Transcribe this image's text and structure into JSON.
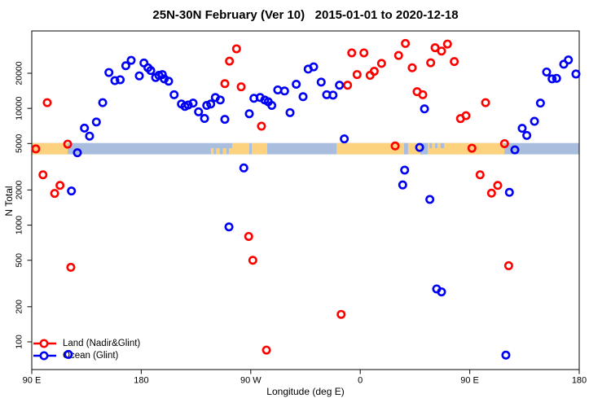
{
  "title": "25N-30N February (Ver 10)   2015-01-01 to 2020-12-18",
  "legend": {
    "land_label": "Land (Nadir&Glint)",
    "ocean_label": "Ocean (Glint)"
  },
  "chart_data": {
    "type": "scatter",
    "title": "25N-30N February (Ver 10)   2015-01-01 to 2020-12-18",
    "xlabel": "Longitude (deg E)",
    "ylabel": "N Total",
    "x_axis": {
      "note": "axis runs 450 degrees eastward starting at 90E; t = degrees east of 90E",
      "range_t": [
        0,
        450
      ],
      "ticks": [
        {
          "t": 0,
          "label": "90 E"
        },
        {
          "t": 90,
          "label": "180"
        },
        {
          "t": 180,
          "label": "90 W"
        },
        {
          "t": 270,
          "label": "0"
        },
        {
          "t": 360,
          "label": "90 E"
        },
        {
          "t": 450,
          "label": "180"
        }
      ]
    },
    "y_axis": {
      "scale": "log",
      "ticks": [
        100,
        200,
        500,
        1000,
        2000,
        5000,
        10000,
        20000
      ],
      "range": [
        57,
        46500
      ],
      "grid": false
    },
    "legend_position": "bottom-left",
    "series": [
      {
        "name": "Land (Nadir&Glint)",
        "color": "#ff0000",
        "marker": "open-circle",
        "points": [
          [
            3.3,
            4500
          ],
          [
            9.2,
            2700
          ],
          [
            12.7,
            11200
          ],
          [
            18.8,
            1870
          ],
          [
            23.2,
            2190
          ],
          [
            29.5,
            4940
          ],
          [
            32.1,
            435
          ],
          [
            158.7,
            16300
          ],
          [
            162.5,
            25400
          ],
          [
            168.3,
            32400
          ],
          [
            172.1,
            15300
          ],
          [
            178.3,
            800
          ],
          [
            181.7,
            500
          ],
          [
            188.8,
            7040
          ],
          [
            192.9,
            85
          ],
          [
            254.3,
            172
          ],
          [
            259.6,
            15800
          ],
          [
            263.0,
            29900
          ],
          [
            267.4,
            19500
          ],
          [
            273.0,
            29900
          ],
          [
            278.1,
            19200
          ],
          [
            281.5,
            20800
          ],
          [
            287.5,
            24300
          ],
          [
            298.7,
            4770
          ],
          [
            301.5,
            28400
          ],
          [
            307.1,
            36000
          ],
          [
            312.7,
            22300
          ],
          [
            316.7,
            13900
          ],
          [
            321.4,
            13100
          ],
          [
            327.9,
            24600
          ],
          [
            331.5,
            33100
          ],
          [
            336.8,
            31000
          ],
          [
            341.7,
            35600
          ],
          [
            347.3,
            25200
          ],
          [
            352.4,
            8180
          ],
          [
            356.9,
            8660
          ],
          [
            361.8,
            4560
          ],
          [
            368.5,
            2700
          ],
          [
            373.0,
            11200
          ],
          [
            377.9,
            1880
          ],
          [
            383.0,
            2190
          ],
          [
            388.6,
            4990
          ],
          [
            392.0,
            449
          ]
        ]
      },
      {
        "name": "Ocean (Glint)",
        "color": "#0000f5",
        "marker": "open-circle",
        "points": [
          [
            30.1,
            78
          ],
          [
            32.6,
            1960
          ],
          [
            37.5,
            4170
          ],
          [
            43.3,
            6780
          ],
          [
            47.5,
            5790
          ],
          [
            53.1,
            7650
          ],
          [
            58.3,
            11200
          ],
          [
            63.4,
            20300
          ],
          [
            68.3,
            17300
          ],
          [
            72.7,
            17600
          ],
          [
            77.3,
            23200
          ],
          [
            81.7,
            25800
          ],
          [
            88.4,
            19000
          ],
          [
            92.2,
            24500
          ],
          [
            95.5,
            22300
          ],
          [
            97.8,
            21100
          ],
          [
            101.8,
            18400
          ],
          [
            104.5,
            19200
          ],
          [
            107.3,
            19500
          ],
          [
            108.9,
            17900
          ],
          [
            112.5,
            17100
          ],
          [
            117.0,
            13100
          ],
          [
            123.0,
            10900
          ],
          [
            125.9,
            10400
          ],
          [
            128.6,
            10700
          ],
          [
            132.6,
            11100
          ],
          [
            137.1,
            9350
          ],
          [
            142.0,
            8200
          ],
          [
            143.8,
            10600
          ],
          [
            147.1,
            10900
          ],
          [
            150.9,
            12400
          ],
          [
            154.9,
            11800
          ],
          [
            158.7,
            8060
          ],
          [
            162.1,
            966
          ],
          [
            174.3,
            3090
          ],
          [
            178.8,
            9000
          ],
          [
            182.6,
            12200
          ],
          [
            187.7,
            12400
          ],
          [
            191.5,
            11800
          ],
          [
            194.4,
            11400
          ],
          [
            197.3,
            10600
          ],
          [
            202.2,
            14400
          ],
          [
            207.8,
            14100
          ],
          [
            212.3,
            9200
          ],
          [
            217.4,
            16100
          ],
          [
            223.0,
            12600
          ],
          [
            227.2,
            21700
          ],
          [
            231.7,
            22700
          ],
          [
            237.9,
            16800
          ],
          [
            242.4,
            13100
          ],
          [
            247.6,
            13000
          ],
          [
            252.9,
            15800
          ],
          [
            256.9,
            5480
          ],
          [
            304.9,
            2210
          ],
          [
            306.5,
            2960
          ],
          [
            318.8,
            4630
          ],
          [
            322.8,
            9900
          ],
          [
            327.2,
            1660
          ],
          [
            332.8,
            284
          ],
          [
            336.8,
            268
          ],
          [
            389.7,
            77
          ],
          [
            392.6,
            1910
          ],
          [
            397.1,
            4410
          ],
          [
            403.1,
            6750
          ],
          [
            406.9,
            5870
          ],
          [
            413.2,
            7750
          ],
          [
            418.1,
            11100
          ],
          [
            423.2,
            20500
          ],
          [
            427.7,
            17900
          ],
          [
            431.4,
            18100
          ],
          [
            437.3,
            23900
          ],
          [
            441.1,
            26000
          ],
          [
            447.3,
            19700
          ]
        ]
      }
    ],
    "coast_band": {
      "description": "land/ocean coastline strip drawn across the plot near N=4500",
      "n_top": 5050,
      "n_bottom": 4040,
      "ocean_color": "#a9bede",
      "land_color": "#fcd27f",
      "land_segments_t": [
        [
          0,
          29.5
        ],
        [
          164.7,
          178.8
        ],
        [
          180.8,
          193.5
        ],
        [
          250.5,
          388.5
        ]
      ],
      "land_fragments_t": [
        [
          147.3,
          149.5
        ],
        [
          151.5,
          154.5
        ],
        [
          157.0,
          160.0
        ],
        [
          162.0,
          164.7
        ]
      ],
      "ocean_patches_t": [
        [
          306.0,
          309.3
        ],
        [
          319.5,
          325.5
        ]
      ],
      "ocean_speckles_t": [
        [
          327.0,
          329.0
        ],
        [
          331.5,
          333.5
        ],
        [
          336.0,
          339.0
        ]
      ]
    }
  }
}
